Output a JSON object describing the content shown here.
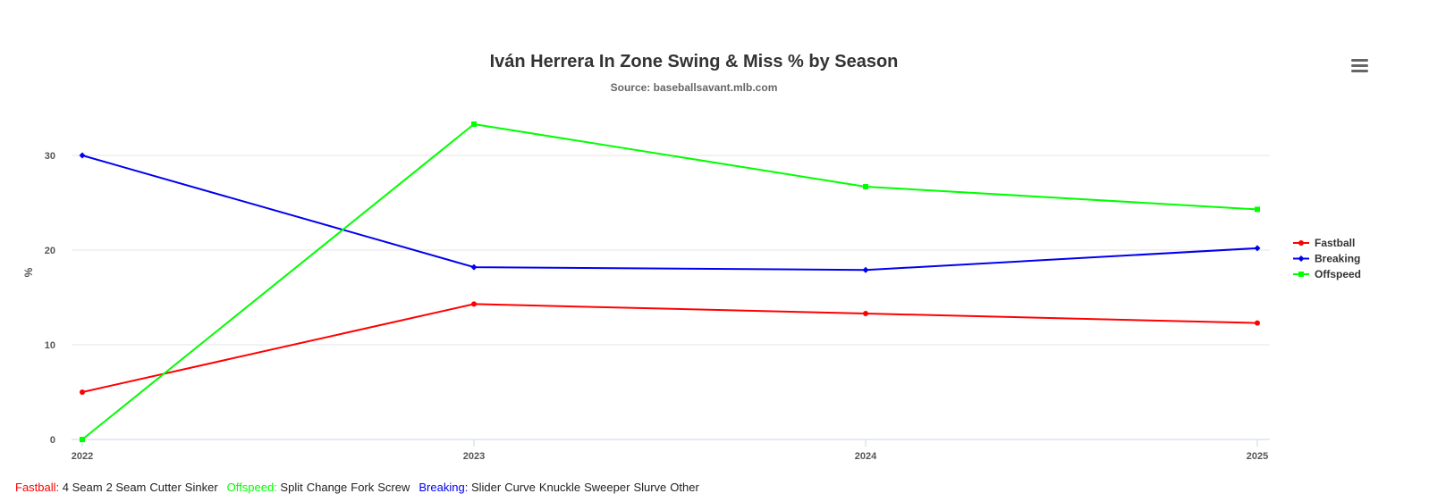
{
  "menu_icon": "hamburger-menu-icon",
  "chart_data": {
    "type": "line",
    "title": "Iván Herrera In Zone Swing & Miss % by Season",
    "subtitle": "Source: baseballsavant.mlb.com",
    "xlabel": "",
    "ylabel": "%",
    "categories": [
      "2022",
      "2023",
      "2024",
      "2025"
    ],
    "ylim": [
      0,
      33.3
    ],
    "yticks": [
      "0",
      "10",
      "20",
      "30"
    ],
    "grid": true,
    "legend_position": "right",
    "series": [
      {
        "name": "Fastball",
        "color": "#ff0000",
        "values": [
          5.0,
          14.3,
          13.3,
          12.3
        ],
        "marker": "circle"
      },
      {
        "name": "Breaking",
        "color": "#0000ee",
        "values": [
          30.0,
          18.2,
          17.9,
          20.2
        ],
        "marker": "diamond"
      },
      {
        "name": "Offspeed",
        "color": "#00ff00",
        "values": [
          0.0,
          33.3,
          26.7,
          24.3
        ],
        "marker": "square"
      }
    ]
  },
  "footer": {
    "groups": [
      {
        "label": "Fastball:",
        "color": "#ff0000",
        "items": [
          "4 Seam",
          "2 Seam",
          "Cutter",
          "Sinker"
        ]
      },
      {
        "label": "Offspeed:",
        "color": "#00ff00",
        "items": [
          "Split",
          "Change",
          "Fork",
          "Screw"
        ]
      },
      {
        "label": "Breaking:",
        "color": "#0000ee",
        "items": [
          "Slider",
          "Curve",
          "Knuckle",
          "Sweeper",
          "Slurve",
          "Other"
        ]
      }
    ]
  }
}
